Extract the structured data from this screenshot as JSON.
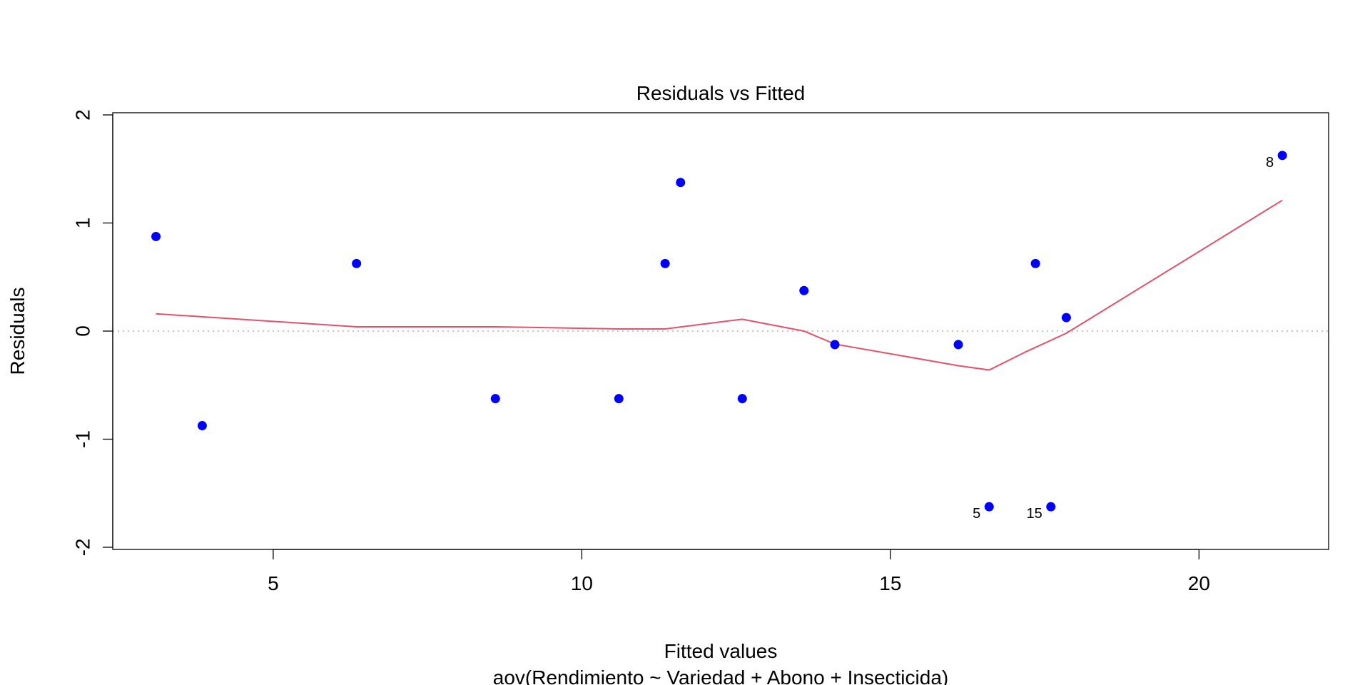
{
  "chart_data": {
    "type": "scatter",
    "title": "Residuals vs Fitted",
    "xlabel": "Fitted values",
    "ylabel": "Residuals",
    "subtitle": "aov(Rendimiento ~ Variedad + Abono + Insecticida)",
    "xlim": [
      2.4,
      22.1
    ],
    "ylim": [
      -2.02,
      2.02
    ],
    "xticks": [
      5,
      10,
      15,
      20
    ],
    "yticks": [
      -2,
      -1,
      0,
      1,
      2
    ],
    "xtick_labels": [
      "5",
      "10",
      "15",
      "20"
    ],
    "ytick_labels": [
      "-2",
      "-1",
      "0",
      "1",
      "2"
    ],
    "points": [
      {
        "x": 3.1,
        "y": 0.875,
        "label": ""
      },
      {
        "x": 3.85,
        "y": -0.875,
        "label": ""
      },
      {
        "x": 6.35,
        "y": 0.625,
        "label": ""
      },
      {
        "x": 8.6,
        "y": -0.625,
        "label": ""
      },
      {
        "x": 10.6,
        "y": -0.625,
        "label": ""
      },
      {
        "x": 11.35,
        "y": 0.625,
        "label": ""
      },
      {
        "x": 11.6,
        "y": 1.375,
        "label": ""
      },
      {
        "x": 12.6,
        "y": -0.625,
        "label": ""
      },
      {
        "x": 13.6,
        "y": 0.375,
        "label": ""
      },
      {
        "x": 14.1,
        "y": -0.125,
        "label": ""
      },
      {
        "x": 16.1,
        "y": -0.125,
        "label": ""
      },
      {
        "x": 16.6,
        "y": -1.625,
        "label": "5"
      },
      {
        "x": 17.35,
        "y": 0.625,
        "label": ""
      },
      {
        "x": 17.6,
        "y": -1.625,
        "label": "15"
      },
      {
        "x": 17.85,
        "y": 0.125,
        "label": ""
      },
      {
        "x": 21.35,
        "y": 1.625,
        "label": "8"
      }
    ],
    "smooth_line": {
      "x": [
        3.1,
        6.35,
        8.6,
        10.6,
        11.35,
        12.6,
        13.6,
        14.1,
        16.1,
        16.6,
        17.2,
        17.85,
        21.35
      ],
      "y": [
        0.16,
        0.04,
        0.04,
        0.02,
        0.02,
        0.11,
        0.0,
        -0.12,
        -0.32,
        -0.36,
        -0.19,
        -0.02,
        1.21
      ]
    },
    "zero_reference_line": 0,
    "grid": false,
    "colors": {
      "points": "#0000ff",
      "smooth_line": "#df536b",
      "reference_line": "#b3b3b3"
    }
  }
}
